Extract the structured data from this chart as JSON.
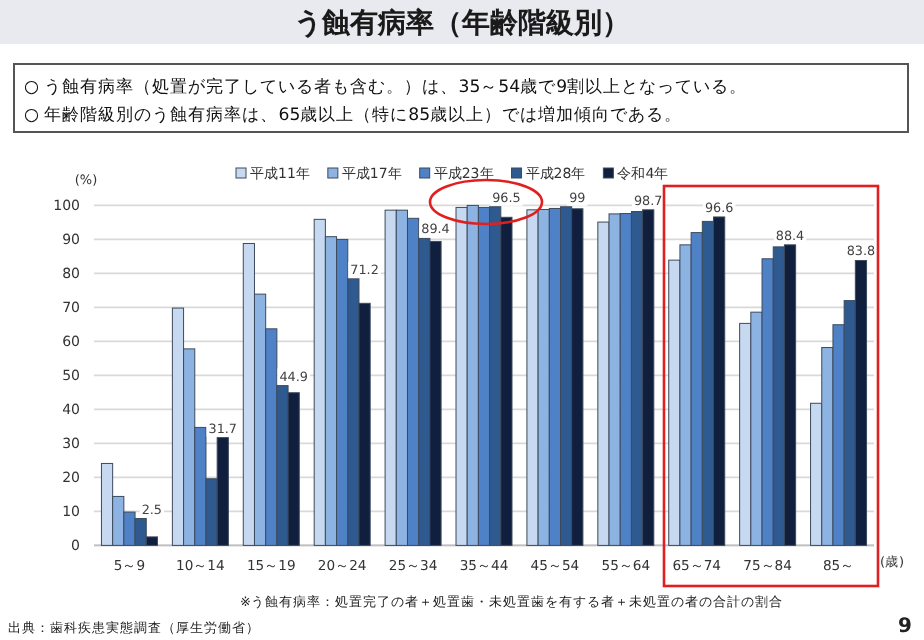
{
  "chart_data": {
    "type": "bar",
    "title": "う蝕有病率（年齢階級別）",
    "categories": [
      "5～9",
      "10～14",
      "15～19",
      "20～24",
      "25～34",
      "35～44",
      "45～54",
      "55～64",
      "65～74",
      "75～84",
      "85～"
    ],
    "series": [
      {
        "name": "平成11年",
        "color": "#c6d9f1",
        "values": [
          24.1,
          69.8,
          88.8,
          95.9,
          98.6,
          99.4,
          98.7,
          95.1,
          83.9,
          65.3,
          41.8
        ]
      },
      {
        "name": "平成17年",
        "color": "#8db3e2",
        "values": [
          14.4,
          57.8,
          73.9,
          90.8,
          98.6,
          100.0,
          98.8,
          97.5,
          88.4,
          68.6,
          58.2
        ]
      },
      {
        "name": "平成23年",
        "color": "#4f81c7",
        "values": [
          9.8,
          34.7,
          63.7,
          90.0,
          96.2,
          99.4,
          99.1,
          97.6,
          92.0,
          84.3,
          64.9
        ]
      },
      {
        "name": "平成28年",
        "color": "#2f5a8f",
        "values": [
          7.9,
          19.6,
          47.0,
          78.4,
          90.3,
          99.6,
          99.6,
          98.2,
          95.3,
          87.8,
          72.0
        ]
      },
      {
        "name": "令和4年",
        "color": "#0f1f3d",
        "values": [
          2.5,
          31.7,
          44.9,
          71.2,
          89.4,
          96.5,
          99,
          98.7,
          96.6,
          88.4,
          83.8
        ],
        "value_labels": [
          "2.5",
          "31.7",
          "44.9",
          "71.2",
          "89.4",
          "96.5",
          "99",
          "98.7",
          "96.6",
          "88.4",
          "83.8"
        ]
      }
    ],
    "ylim": [
      0,
      100
    ],
    "yticks": [
      0,
      10,
      20,
      30,
      40,
      50,
      60,
      70,
      80,
      90,
      100
    ],
    "grid": "y",
    "ylabel": "(%)",
    "xlabel": "(歳)",
    "legend": "top",
    "annotations": [
      "○ う蝕有病率（処置が完了している者も含む。）は、35～54歳で9割以上となっている。",
      "○ 年齢階級別のう蝕有病率は、65歳以上（特に85歳以上）では増加傾向である。",
      "※う蝕有病率：処置完了の者＋処置歯・未処置歯を有する者＋未処置の者の合計の割合",
      "出典：歯科疾患実態調査（厚生労働省）",
      "9"
    ]
  }
}
